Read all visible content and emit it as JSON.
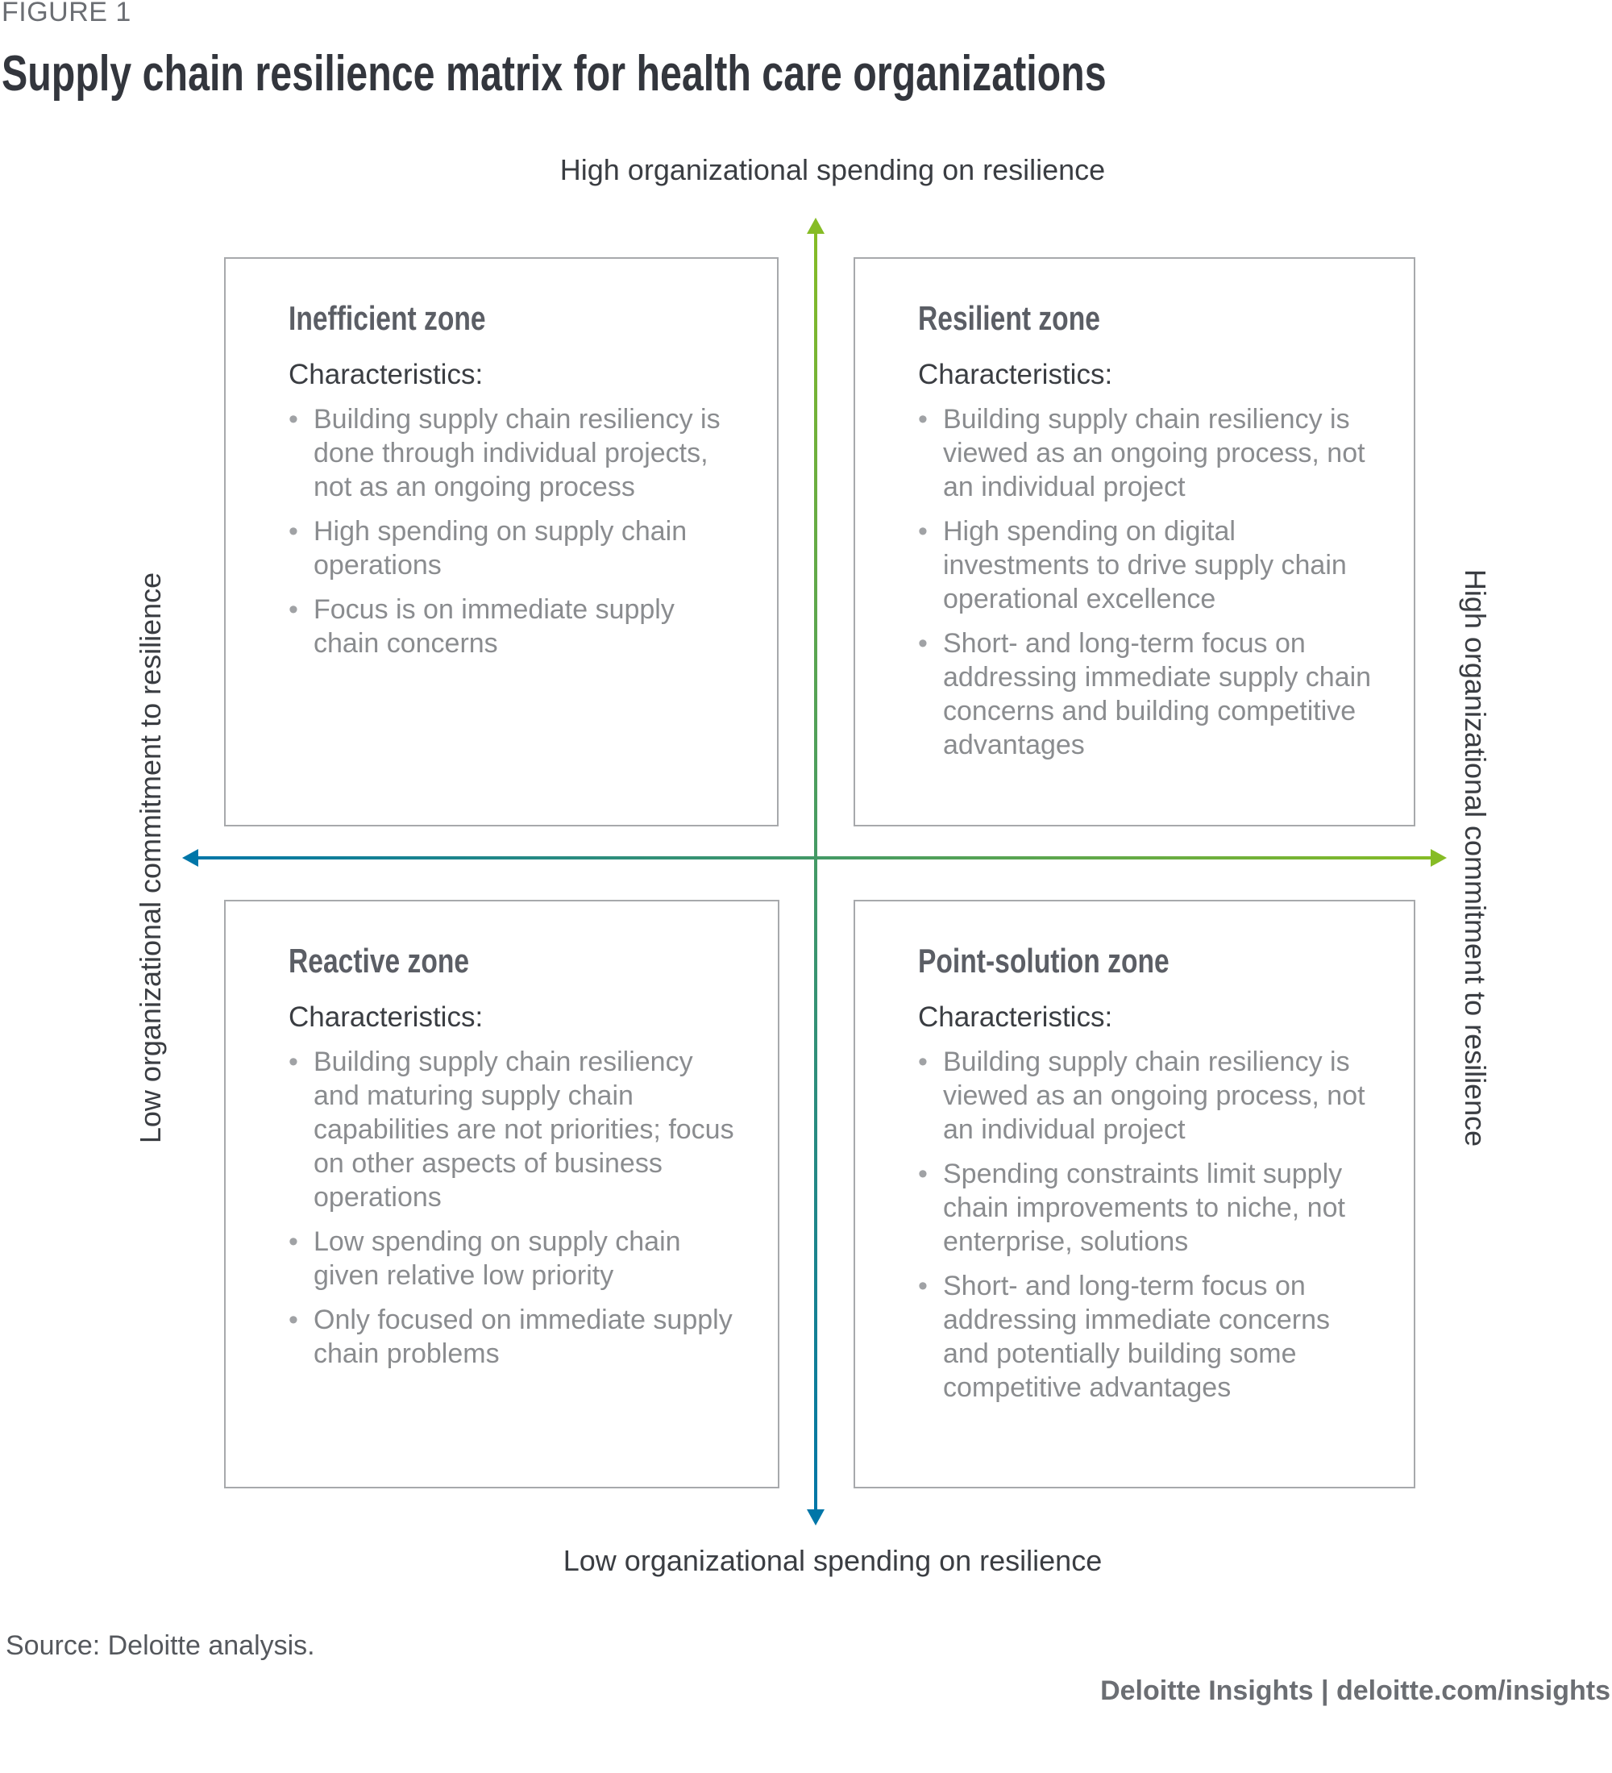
{
  "figure_label": "FIGURE 1",
  "title": "Supply chain resilience matrix for health care organizations",
  "axes": {
    "top": "High organizational spending on resilience",
    "bottom": "Low organizational spending on resilience",
    "left": "Low organizational commitment to resilience",
    "right": "High organizational commitment to resilience",
    "colors": {
      "green": "#86bc25",
      "blue": "#0076a8"
    }
  },
  "quadrants": [
    {
      "title": "Inefficient zone",
      "subtitle": "Characteristics:",
      "bullets": [
        "Building supply chain resiliency is done through individual projects, not as an ongoing process",
        "High spending on supply chain operations",
        "Focus is on immediate supply chain concerns"
      ]
    },
    {
      "title": "Resilient zone",
      "subtitle": "Characteristics:",
      "bullets": [
        "Building supply chain resiliency is viewed as an ongoing process, not an individual project",
        "High spending on digital investments to drive supply chain operational excellence",
        "Short- and long-term focus on addressing immediate supply chain concerns and building competitive advantages"
      ]
    },
    {
      "title": "Reactive zone",
      "subtitle": "Characteristics:",
      "bullets": [
        "Building supply chain resiliency and maturing supply chain capabilities are not priorities; focus on other aspects of business operations",
        "Low spending on supply chain given relative low priority",
        "Only focused on immediate supply chain problems"
      ]
    },
    {
      "title": "Point-solution zone",
      "subtitle": "Characteristics:",
      "bullets": [
        "Building supply chain resiliency is viewed as an ongoing process, not an individual project",
        "Spending constraints limit supply chain improvements to niche, not enterprise, solutions",
        "Short- and long-term focus on addressing immediate concerns and potentially building some competitive advantages"
      ]
    }
  ],
  "bullet_glyph": "•",
  "source": "Source: Deloitte analysis.",
  "footer": "Deloitte Insights | deloitte.com/insights"
}
